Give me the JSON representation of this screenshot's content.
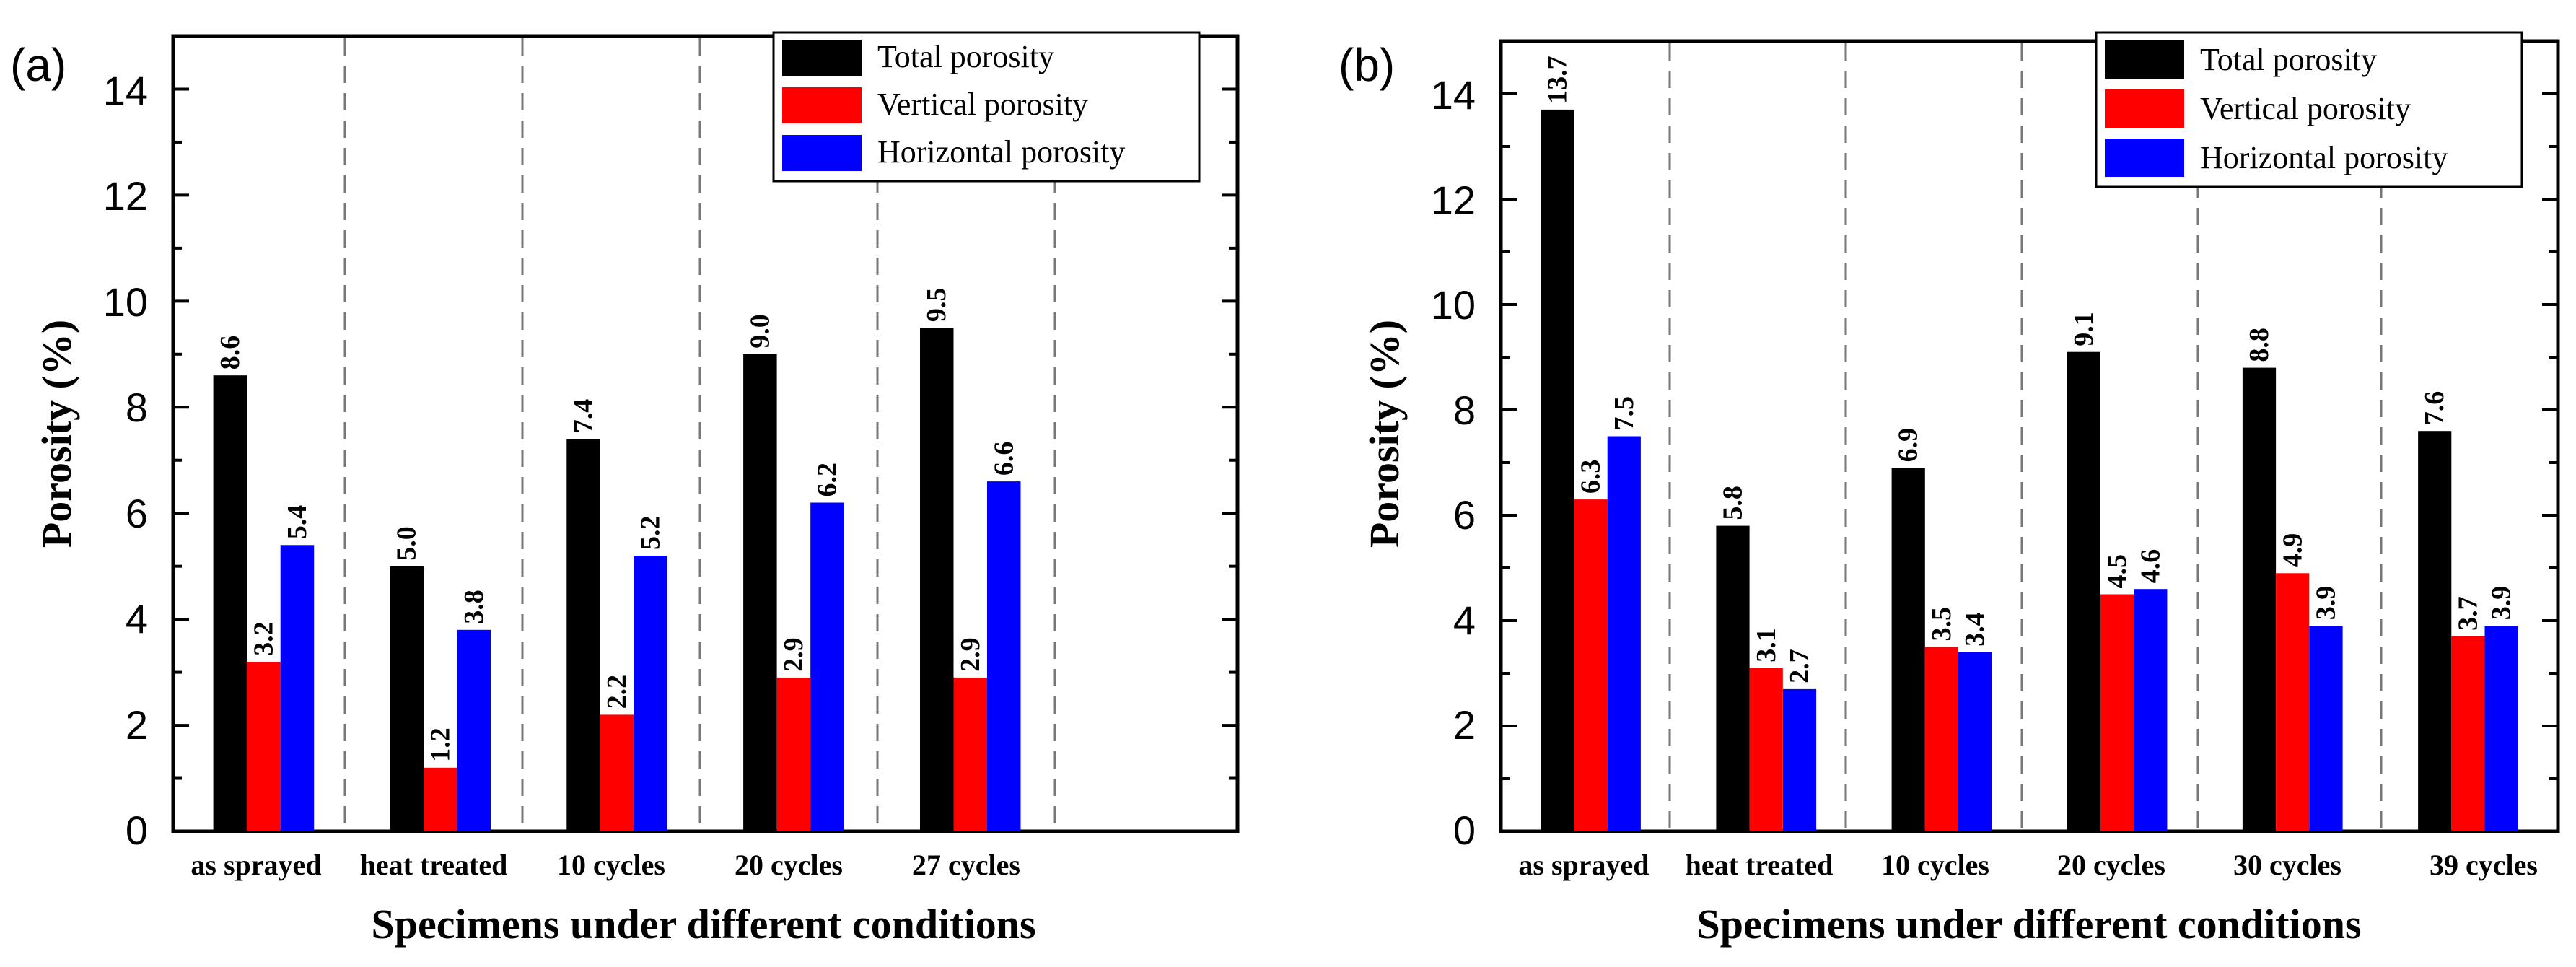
{
  "chart_data": [
    {
      "panel_label": "(a)",
      "type": "bar",
      "title": "",
      "xlabel": "Specimens under different conditions",
      "ylabel": "Porosity (%)",
      "ylim": [
        0,
        15
      ],
      "yticks": [
        0,
        2,
        4,
        6,
        8,
        10,
        12,
        14
      ],
      "slots": 6,
      "categories": [
        "as sprayed",
        "heat treated",
        "10 cycles",
        "20 cycles",
        "27 cycles"
      ],
      "series": [
        {
          "name": "Total porosity",
          "color": "#000000",
          "values": [
            8.6,
            5.0,
            7.4,
            9.0,
            9.5
          ],
          "labels": [
            "8.6",
            "5.0",
            "7.4",
            "9.0",
            "9.5"
          ]
        },
        {
          "name": "Vertical porosity",
          "color": "#ff0000",
          "values": [
            3.2,
            1.2,
            2.2,
            2.9,
            2.9
          ],
          "labels": [
            "3.2",
            "1.2",
            "2.2",
            "2.9",
            "2.9"
          ]
        },
        {
          "name": "Horizontal porosity",
          "color": "#0000ff",
          "values": [
            5.4,
            3.8,
            5.2,
            6.2,
            6.6
          ],
          "labels": [
            "5.4",
            "3.8",
            "5.2",
            "6.2",
            "6.6"
          ]
        }
      ],
      "legend": "top-right",
      "grid": false,
      "separators": "dashed vertical lines between categories"
    },
    {
      "panel_label": "(b)",
      "type": "bar",
      "title": "",
      "xlabel": "Specimens under different conditions",
      "ylabel": "Porosity (%)",
      "ylim": [
        0,
        15
      ],
      "yticks": [
        0,
        2,
        4,
        6,
        8,
        10,
        12,
        14
      ],
      "slots": 6,
      "categories": [
        "as sprayed",
        "heat treated",
        "10 cycles",
        "20 cycles",
        "30 cycles",
        "39 cycles"
      ],
      "series": [
        {
          "name": "Total porosity",
          "color": "#000000",
          "values": [
            13.7,
            5.8,
            6.9,
            9.1,
            8.8,
            7.6
          ],
          "labels": [
            "13.7",
            "5.8",
            "6.9",
            "9.1",
            "8.8",
            "7.6"
          ]
        },
        {
          "name": "Vertical porosity",
          "color": "#ff0000",
          "values": [
            6.3,
            3.1,
            3.5,
            4.5,
            4.9,
            3.7
          ],
          "labels": [
            "6.3",
            "3.1",
            "3.5",
            "4.5",
            "4.9",
            "3.7"
          ]
        },
        {
          "name": "Horizontal porosity",
          "color": "#0000ff",
          "values": [
            7.5,
            2.7,
            3.4,
            4.6,
            3.9,
            3.9
          ],
          "labels": [
            "7.5",
            "2.7",
            "3.4",
            "4.6",
            "3.9",
            "3.9"
          ]
        }
      ],
      "legend": "top-right",
      "grid": false,
      "separators": "dashed vertical lines between categories"
    }
  ]
}
